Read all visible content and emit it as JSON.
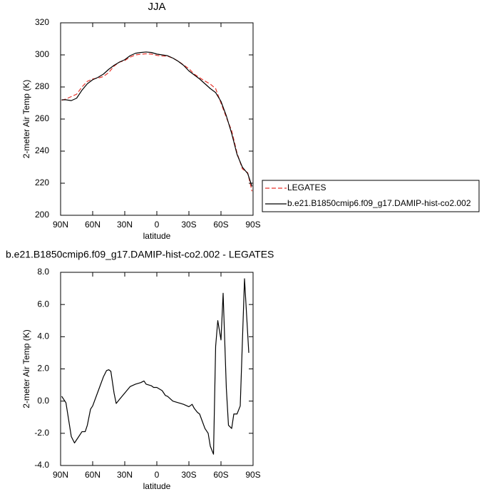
{
  "chart_data": [
    {
      "type": "line",
      "title": "JJA",
      "xlabel": "latitude",
      "ylabel": "2-meter Air Temp (K)",
      "x": [
        89,
        85,
        80,
        75,
        70,
        65,
        60,
        55,
        50,
        45,
        40,
        35,
        30,
        25,
        20,
        15,
        10,
        5,
        0,
        -5,
        -10,
        -15,
        -20,
        -25,
        -30,
        -35,
        -40,
        -45,
        -50,
        -55,
        -60,
        -65,
        -70,
        -75,
        -80,
        -85,
        -89
      ],
      "series": [
        {
          "name": "LEGATES",
          "color": "#e8322a",
          "dashed": true,
          "values": [
            271.7,
            272.5,
            274,
            275.5,
            280,
            283.5,
            285,
            285.5,
            286.5,
            289,
            293,
            295.5,
            296.5,
            298.6,
            300,
            300.4,
            300.7,
            300.5,
            299.7,
            299.3,
            299.2,
            298,
            296.1,
            293.7,
            291.4,
            288,
            285.8,
            283.7,
            281.8,
            279,
            270,
            261,
            252.7,
            238.8,
            229,
            226.5,
            215
          ]
        },
        {
          "name": "b.e21.B1850cmip6.f09_g17.DAMIP-hist-co2.002",
          "color": "#000000",
          "dashed": false,
          "values": [
            272,
            272,
            271.5,
            273,
            278,
            282,
            284.5,
            286,
            288,
            291,
            293.5,
            295.5,
            297,
            299.5,
            301,
            301.5,
            301.8,
            301.5,
            300.5,
            300,
            299.5,
            298,
            296,
            293.5,
            290,
            287.5,
            285,
            282,
            279,
            276.5,
            271,
            262,
            251,
            238,
            230,
            226,
            218
          ]
        }
      ],
      "xlim": [
        90,
        -90
      ],
      "xticks": [
        {
          "value": 90,
          "label": "90N"
        },
        {
          "value": 60,
          "label": "60N"
        },
        {
          "value": 30,
          "label": "30N"
        },
        0,
        {
          "value": -30,
          "label": "30S"
        },
        {
          "value": -60,
          "label": "60S"
        },
        {
          "value": -90,
          "label": "90S"
        }
      ],
      "ylim": [
        200,
        320
      ],
      "yticks": [
        200,
        220,
        240,
        260,
        280,
        300,
        320
      ],
      "legend": "right"
    },
    {
      "type": "line",
      "title": "b.e21.B1850cmip6.f09_g17.DAMIP-hist-co2.002 - LEGATES",
      "xlabel": "latitude",
      "ylabel": "2-meter Air Temp (K)",
      "x": [
        89,
        85,
        80,
        77,
        75,
        70,
        67,
        65,
        62,
        60,
        55,
        50,
        47,
        45,
        43,
        40,
        38,
        35,
        30,
        25,
        20,
        15,
        12,
        10,
        5,
        3,
        0,
        -5,
        -8,
        -10,
        -15,
        -20,
        -25,
        -30,
        -33,
        -35,
        -38,
        -40,
        -45,
        -48,
        -50,
        -53,
        -55,
        -57,
        -60,
        -62,
        -65,
        -67,
        -70,
        -72,
        -75,
        -78,
        -82,
        -86
      ],
      "values": [
        0.3,
        -0.1,
        -2.2,
        -2.6,
        -2.4,
        -1.9,
        -1.9,
        -1.5,
        -0.5,
        -0.3,
        0.6,
        1.5,
        1.9,
        1.95,
        1.85,
        0.5,
        -0.15,
        0.1,
        0.5,
        0.9,
        1.05,
        1.15,
        1.25,
        1.05,
        0.95,
        0.85,
        0.85,
        0.65,
        0.35,
        0.3,
        0.0,
        -0.1,
        -0.2,
        -0.35,
        -0.2,
        -0.45,
        -0.7,
        -0.8,
        -1.7,
        -2.0,
        -2.8,
        -3.3,
        3.4,
        5.0,
        3.8,
        6.7,
        0.8,
        -1.5,
        -1.7,
        -0.8,
        -0.8,
        -0.3,
        7.6,
        3.0
      ],
      "color": "#000000",
      "xlim": [
        90,
        -90
      ],
      "xticks": [
        {
          "value": 90,
          "label": "90N"
        },
        {
          "value": 60,
          "label": "60N"
        },
        {
          "value": 30,
          "label": "30N"
        },
        0,
        {
          "value": -30,
          "label": "30S"
        },
        {
          "value": -60,
          "label": "60S"
        },
        {
          "value": -90,
          "label": "90S"
        }
      ],
      "ylim": [
        -4,
        8
      ],
      "yticks": [
        {
          "value": -4,
          "label": "-4.0"
        },
        {
          "value": -2,
          "label": "-2.0"
        },
        {
          "value": 0,
          "label": "0.0"
        },
        {
          "value": 2,
          "label": "2.0"
        },
        {
          "value": 4,
          "label": "4.0"
        },
        {
          "value": 6,
          "label": "6.0"
        },
        {
          "value": 8,
          "label": "8.0"
        }
      ]
    }
  ]
}
